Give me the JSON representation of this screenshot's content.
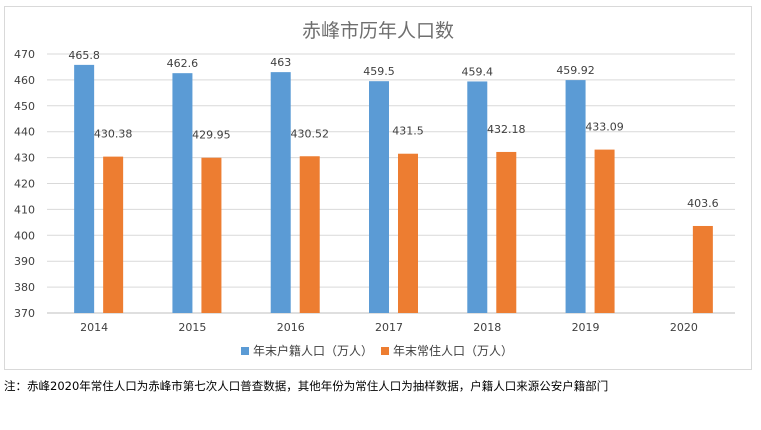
{
  "chart_data": {
    "type": "bar",
    "title": "赤峰市历年人口数",
    "categories": [
      "2014",
      "2015",
      "2016",
      "2017",
      "2018",
      "2019",
      "2020"
    ],
    "series": [
      {
        "name": "年末户籍人口（万人）",
        "color": "#5b9bd5",
        "values": [
          465.8,
          462.6,
          463,
          459.5,
          459.4,
          459.92,
          null
        ],
        "labels": [
          "465.8",
          "462.6",
          "463",
          "459.5",
          "459.4",
          "459.92",
          ""
        ]
      },
      {
        "name": "年末常住人口（万人）",
        "color": "#ed7d31",
        "values": [
          430.38,
          429.95,
          430.52,
          431.5,
          432.18,
          433.09,
          403.6
        ],
        "labels": [
          "430.38",
          "429.95",
          "430.52",
          "431.5",
          "432.18",
          "433.09",
          "403.6"
        ]
      }
    ],
    "ylim": [
      370,
      470
    ],
    "yticks": [
      "370",
      "380",
      "390",
      "400",
      "410",
      "420",
      "430",
      "440",
      "450",
      "460",
      "470"
    ],
    "grid": true,
    "legend_position": "bottom"
  },
  "footnote": "注：赤峰2020年常住人口为赤峰市第七次人口普查数据，其他年份为常住人口为抽样数据，户籍人口来源公安户籍部门"
}
